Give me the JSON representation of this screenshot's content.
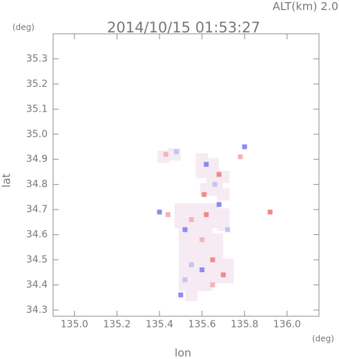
{
  "chart_data": {
    "type": "scatter",
    "title": "2014/10/15 01:53:27",
    "altitude_label": "ALT(km) 2.0",
    "xlabel": "lon",
    "ylabel": "lat",
    "xunit": "(deg)",
    "yunit": "(deg)",
    "xlim": [
      134.9,
      136.15
    ],
    "ylim": [
      34.275,
      35.4
    ],
    "xticks": [
      {
        "value": 135,
        "label": "135.0"
      },
      135.2,
      135.4,
      135.6,
      135.8,
      {
        "value": 136,
        "label": "136.0"
      }
    ],
    "yticks": [
      34.3,
      34.4,
      34.5,
      34.6,
      34.7,
      34.8,
      34.9,
      {
        "value": 35,
        "label": "35.0"
      },
      35.1,
      35.2,
      35.3
    ],
    "x": [
      135.5,
      135.55,
      135.6,
      135.65,
      135.7,
      135.5,
      135.55,
      135.6,
      135.65,
      135.7,
      135.52,
      135.57,
      135.62,
      135.67,
      135.52,
      135.57,
      135.62,
      135.67,
      135.52,
      135.57,
      135.62,
      135.67,
      135.72,
      135.52,
      135.57,
      135.62,
      135.67,
      135.72,
      135.52,
      135.57,
      135.62,
      135.55,
      135.6,
      135.65,
      135.6,
      135.65,
      135.7,
      135.62,
      135.67,
      135.7,
      135.42,
      135.47,
      135.62,
      135.68,
      135.55,
      135.52,
      135.6,
      135.72,
      135.65,
      135.55,
      135.6,
      135.7,
      135.52,
      135.65,
      135.5,
      135.62,
      135.68,
      135.66,
      135.61,
      135.43,
      135.48,
      135.92,
      135.8,
      135.78,
      135.4,
      135.44
    ],
    "values": [
      34.7,
      34.7,
      34.7,
      34.7,
      34.68,
      34.65,
      34.65,
      34.65,
      34.65,
      34.64,
      34.6,
      34.6,
      34.6,
      34.58,
      34.55,
      34.55,
      34.55,
      34.53,
      34.5,
      34.5,
      34.5,
      34.48,
      34.48,
      34.45,
      34.45,
      34.45,
      34.43,
      34.43,
      34.4,
      34.4,
      34.4,
      34.36,
      34.9,
      34.88,
      34.85,
      34.83,
      34.83,
      34.78,
      34.78,
      34.76,
      34.91,
      34.92,
      34.68,
      34.72,
      34.66,
      34.62,
      34.58,
      34.62,
      34.5,
      34.48,
      34.46,
      34.44,
      34.42,
      34.4,
      34.36,
      34.88,
      34.84,
      34.8,
      34.76,
      34.92,
      34.93,
      34.69,
      34.95,
      34.91,
      34.69,
      34.68
    ],
    "point_colors": [
      "#f6eaf3",
      "#f6eaf3",
      "#f6eaf3",
      "#f6eaf3",
      "#f6eaf3",
      "#f6eaf3",
      "#f6eaf3",
      "#f6eaf3",
      "#f6eaf3",
      "#f6eaf3",
      "#f6eaf3",
      "#f6eaf3",
      "#f6eaf3",
      "#f6eaf3",
      "#f6eaf3",
      "#f6eaf3",
      "#f6eaf3",
      "#f6eaf3",
      "#f6eaf3",
      "#f6eaf3",
      "#f6eaf3",
      "#f6eaf3",
      "#f6eaf3",
      "#f6eaf3",
      "#f6eaf3",
      "#f6eaf3",
      "#f6eaf3",
      "#f6eaf3",
      "#f6eaf3",
      "#f6eaf3",
      "#f6eaf3",
      "#f6eaf3",
      "#f6eaf3",
      "#f6eaf3",
      "#f6eaf3",
      "#f6eaf3",
      "#f6eaf3",
      "#f6eaf3",
      "#f6eaf3",
      "#f6eaf3",
      "#f6eaf3",
      "#f6eaf3",
      "#f08a8a",
      "#8c8cf0",
      "#f4b4b4",
      "#8c8cf0",
      "#f4b4b4",
      "#c4c4f4",
      "#f08a8a",
      "#c4c4f4",
      "#8c8cf0",
      "#f08a8a",
      "#c4c4f4",
      "#f4b4b4",
      "#8c8cf0",
      "#8c8cf0",
      "#f08a8a",
      "#c4c4f4",
      "#f08a8a",
      "#f4b4b4",
      "#c4c4f4",
      "#f08a8a",
      "#8c8cf0",
      "#f4b4b4",
      "#8c8cf0",
      "#f4b4b4"
    ]
  }
}
